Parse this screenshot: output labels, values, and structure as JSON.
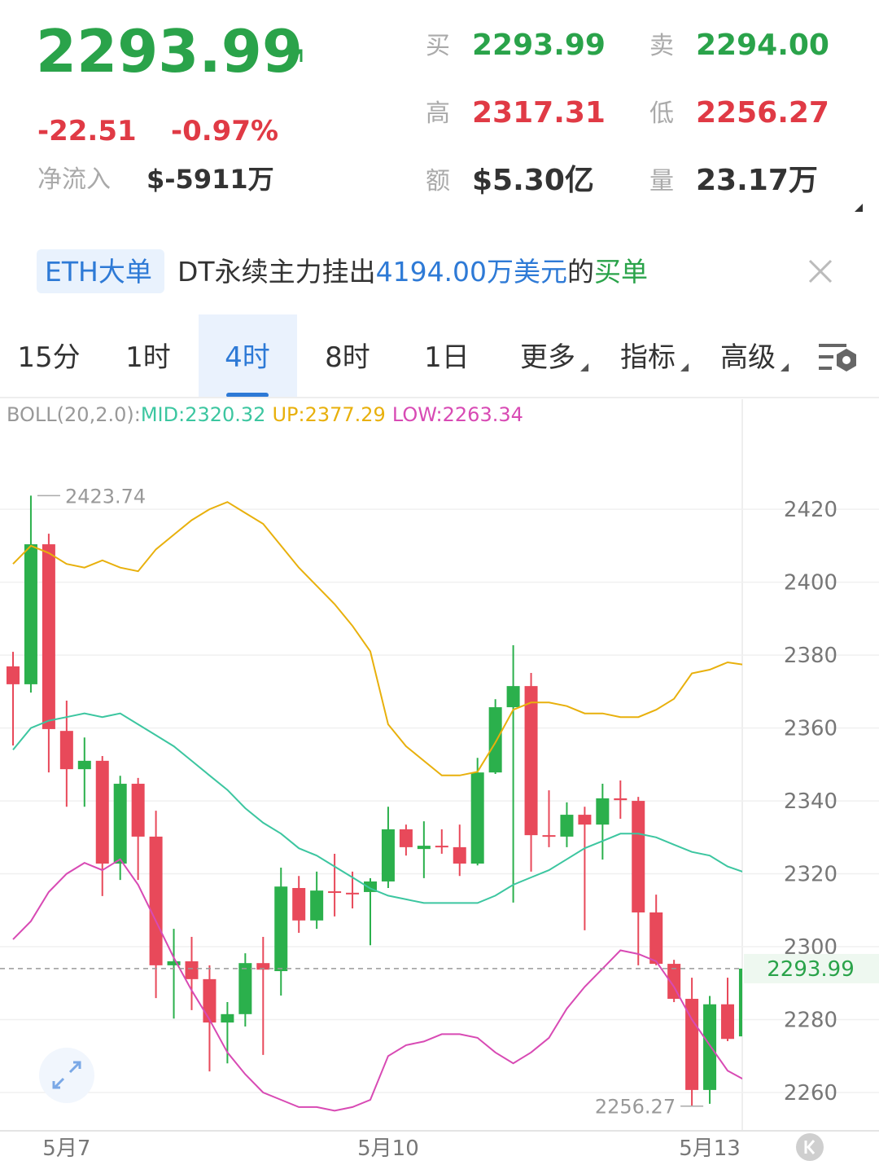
{
  "header": {
    "price": "2293.99",
    "change": "-22.51",
    "change_pct": "-0.97%",
    "inflow_label": "净流入",
    "inflow_value": "$-5911万",
    "stats": [
      {
        "label": "买",
        "value": "2293.99"
      },
      {
        "label": "卖",
        "value": "2294.00"
      },
      {
        "label": "高",
        "value": "2317.31"
      },
      {
        "label": "低",
        "value": "2256.27"
      },
      {
        "label": "额",
        "value": "$5.30亿"
      },
      {
        "label": "量",
        "value": "23.17万"
      }
    ]
  },
  "banner": {
    "tag": "ETH大单",
    "text_start": "DT永续主力挂出",
    "amount": "4194.00万美元",
    "text_mid": "的",
    "side": "买单"
  },
  "tabs": [
    "15分",
    "1时",
    "4时",
    "8时",
    "1日",
    "更多",
    "指标",
    "高级"
  ],
  "selected_tab": 2,
  "chart_data": {
    "type": "candlestick",
    "indicator_label": "BOLL(20,2.0):",
    "categories": [
      null,
      null,
      null,
      "5月7",
      null,
      null,
      null,
      null,
      null,
      null,
      null,
      null,
      null,
      null,
      null,
      null,
      null,
      null,
      null,
      null,
      null,
      "5月10",
      null,
      null,
      null,
      null,
      null,
      null,
      null,
      null,
      null,
      null,
      null,
      null,
      null,
      null,
      null,
      null,
      null,
      "5月13",
      null,
      null
    ],
    "open": [
      2376.9,
      2372.0,
      2410.4,
      2359.2,
      2348.7,
      2351.0,
      2322.8,
      2344.7,
      2330.2,
      2294.9,
      2296.0,
      2291.1,
      2279.2,
      2281.5,
      2295.5,
      2293.3,
      2316.1,
      2307.2,
      2315.2,
      2314.8,
      2315.0,
      2317.9,
      2332.2,
      2326.8,
      2327.7,
      2327.3,
      2322.8,
      2347.8,
      2365.7,
      2371.5,
      2330.6,
      2330.2,
      2336.2,
      2333.5,
      2340.7,
      2340.0,
      2309.4,
      2295.3,
      2285.7,
      2260.7,
      2284.2,
      2275.4
    ],
    "high": [
      2380.9,
      2423.74,
      2413.3,
      2367.5,
      2357.4,
      2352.3,
      2346.9,
      2346.3,
      2337.3,
      2304.9,
      2302.7,
      2294.9,
      2284.8,
      2298.2,
      2302.7,
      2321.7,
      2319.4,
      2320.6,
      2325.5,
      2320.6,
      2318.8,
      2338.4,
      2333.5,
      2334.4,
      2332.2,
      2333.5,
      2351.8,
      2367.9,
      2382.7,
      2375.1,
      2342.9,
      2339.6,
      2338.4,
      2344.7,
      2345.6,
      2341.1,
      2314.3,
      2296.4,
      2291.5,
      2286.5,
      2291.5,
      2294.5
    ],
    "low": [
      2355.2,
      2369.7,
      2347.8,
      2338.4,
      2338.4,
      2313.9,
      2318.3,
      2318.3,
      2285.9,
      2280.3,
      2282.6,
      2265.8,
      2268.0,
      2278.1,
      2270.3,
      2286.6,
      2303.8,
      2304.9,
      2308.3,
      2310.5,
      2300.4,
      2316.1,
      2325.0,
      2318.8,
      2325.5,
      2319.4,
      2322.3,
      2347.4,
      2312.1,
      2320.6,
      2327.3,
      2327.3,
      2304.5,
      2323.9,
      2335.1,
      2294.9,
      2294.9,
      2284.8,
      2256.27,
      2256.9,
      2274.1,
      2274.5
    ],
    "close": [
      2372.0,
      2410.4,
      2359.7,
      2348.7,
      2351.0,
      2322.8,
      2344.7,
      2330.2,
      2294.9,
      2296.0,
      2291.1,
      2279.2,
      2281.5,
      2295.5,
      2293.7,
      2316.5,
      2307.2,
      2315.4,
      2314.8,
      2314.5,
      2317.9,
      2332.2,
      2327.3,
      2327.7,
      2327.3,
      2322.8,
      2347.8,
      2365.7,
      2371.5,
      2330.6,
      2330.2,
      2336.2,
      2333.5,
      2340.7,
      2340.2,
      2309.4,
      2295.3,
      2285.7,
      2260.7,
      2284.2,
      2274.7,
      2293.99
    ],
    "up_color": "#2bb04c",
    "down_color": "#e8495a",
    "series": [
      {
        "name": "MID:",
        "color": "#3cc6a0",
        "values": [
          2354,
          2360,
          2362,
          2363,
          2364,
          2363,
          2364,
          2361,
          2358,
          2355,
          2351,
          2347,
          2343,
          2338,
          2334,
          2331,
          2327,
          2325,
          2322,
          2319,
          2316,
          2314,
          2313,
          2312,
          2312,
          2312,
          2312,
          2314,
          2317,
          2319,
          2321,
          2324,
          2327,
          2329,
          2331,
          2331,
          2330,
          2328,
          2326,
          2325,
          2322,
          2320.32
        ]
      },
      {
        "name": "UP:",
        "color": "#e8b00c",
        "values": [
          2405,
          2410,
          2408,
          2405,
          2404,
          2406,
          2404,
          2403,
          2409,
          2413,
          2417,
          2420,
          2422,
          2419,
          2416,
          2410,
          2404,
          2399,
          2394,
          2388,
          2381,
          2361,
          2355,
          2351,
          2347,
          2347,
          2348,
          2356,
          2365,
          2367,
          2367,
          2366,
          2364,
          2364,
          2363,
          2363,
          2365,
          2368,
          2375,
          2376,
          2378,
          2377.29
        ]
      },
      {
        "name": "LOW:",
        "color": "#d84ab4",
        "values": [
          2302,
          2307,
          2315,
          2320,
          2323,
          2321,
          2324,
          2317,
          2307,
          2297,
          2288,
          2280,
          2271,
          2265,
          2260,
          2258,
          2256,
          2256,
          2255,
          2256,
          2258,
          2270,
          2273,
          2274,
          2276,
          2276,
          2275,
          2271,
          2268,
          2271,
          2275,
          2283,
          2289,
          2294,
          2299,
          2298,
          2296,
          2289,
          2280,
          2273,
          2266,
          2263.34
        ]
      }
    ],
    "ylim": [
      2249.5,
      2450.2
    ],
    "yticks": [
      2260,
      2280,
      2300,
      2320,
      2340,
      2360,
      2380,
      2400,
      2420
    ],
    "grid": true
  }
}
